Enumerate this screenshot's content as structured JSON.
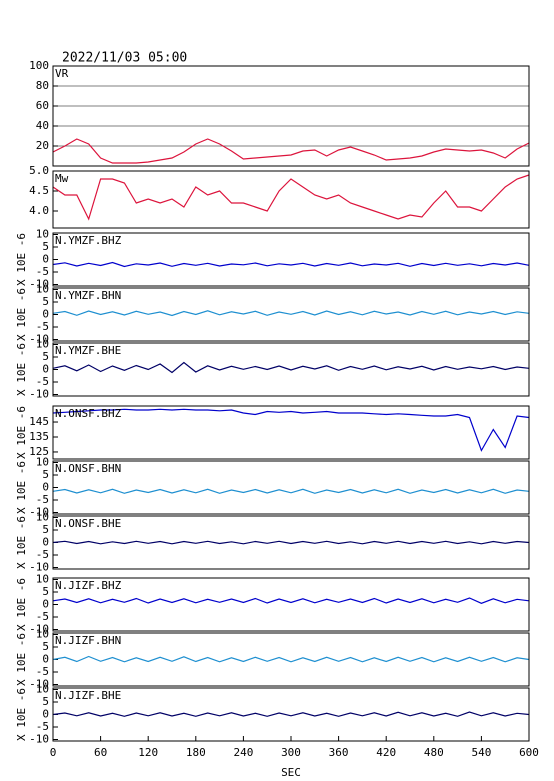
{
  "chart_data": [
    {
      "type": "line",
      "title": "2022/11/03 05:00",
      "label": "VR",
      "grid": true,
      "color": "#dc143c",
      "xlim": [
        0,
        600
      ],
      "ylim": [
        0,
        100
      ],
      "yticks": [
        20,
        40,
        60,
        80,
        100
      ],
      "x": [
        0,
        15,
        30,
        45,
        60,
        75,
        90,
        105,
        120,
        135,
        150,
        165,
        180,
        195,
        210,
        225,
        240,
        255,
        270,
        285,
        300,
        315,
        330,
        345,
        360,
        375,
        390,
        405,
        420,
        435,
        450,
        465,
        480,
        495,
        510,
        525,
        540,
        555,
        570,
        585,
        600
      ],
      "values": [
        14,
        20,
        27,
        22,
        8,
        3,
        3,
        3,
        4,
        6,
        8,
        14,
        22,
        27,
        22,
        15,
        7,
        8,
        9,
        10,
        11,
        15,
        16,
        10,
        16,
        19,
        15,
        11,
        6,
        7,
        8,
        10,
        14,
        17,
        16,
        15,
        16,
        13,
        8,
        17,
        23
      ]
    },
    {
      "type": "line",
      "label": "Mw",
      "color": "#dc143c",
      "xlim": [
        0,
        600
      ],
      "ylim": [
        3.575,
        5.0
      ],
      "yticks": [
        {
          "value": 4.0,
          "label": "4.0"
        },
        {
          "value": 4.5,
          "label": "4.5"
        },
        {
          "value": 5.0,
          "label": "5.0"
        }
      ],
      "x": [
        0,
        15,
        30,
        45,
        60,
        75,
        90,
        105,
        120,
        135,
        150,
        165,
        180,
        195,
        210,
        225,
        240,
        255,
        270,
        285,
        300,
        315,
        330,
        345,
        360,
        375,
        390,
        405,
        420,
        435,
        450,
        465,
        480,
        495,
        510,
        525,
        540,
        555,
        570,
        585,
        600
      ],
      "values": [
        4.6,
        4.4,
        4.4,
        3.8,
        4.8,
        4.8,
        4.7,
        4.2,
        4.3,
        4.2,
        4.3,
        4.1,
        4.6,
        4.4,
        4.5,
        4.2,
        4.2,
        4.1,
        4.0,
        4.5,
        4.8,
        4.6,
        4.4,
        4.3,
        4.4,
        4.2,
        4.1,
        4.0,
        3.9,
        3.8,
        3.9,
        3.85,
        4.2,
        4.5,
        4.1,
        4.1,
        4.0,
        4.3,
        4.6,
        4.8,
        4.9
      ]
    },
    {
      "type": "line",
      "label": "N.YMZF.BHZ",
      "ylabel": "X 10E -6",
      "color": "#0000cc",
      "xlim": [
        0,
        600
      ],
      "ylim": [
        -10.6,
        10.6
      ],
      "yticks": [
        -10,
        -5,
        0,
        5,
        10
      ],
      "x": [
        0,
        15,
        30,
        45,
        60,
        75,
        90,
        105,
        120,
        135,
        150,
        165,
        180,
        195,
        210,
        225,
        240,
        255,
        270,
        285,
        300,
        315,
        330,
        345,
        360,
        375,
        390,
        405,
        420,
        435,
        450,
        465,
        480,
        495,
        510,
        525,
        540,
        555,
        570,
        585,
        600
      ],
      "values": [
        -2,
        -1.3,
        -2.6,
        -1.5,
        -2.4,
        -1.2,
        -2.8,
        -1.7,
        -2.2,
        -1.4,
        -2.7,
        -1.6,
        -2.3,
        -1.5,
        -2.6,
        -1.8,
        -2.1,
        -1.4,
        -2.5,
        -1.7,
        -2.2,
        -1.5,
        -2.6,
        -1.6,
        -2.3,
        -1.4,
        -2.5,
        -1.8,
        -2.2,
        -1.5,
        -2.7,
        -1.6,
        -2.4,
        -1.5,
        -2.3,
        -1.7,
        -2.5,
        -1.6,
        -2.2,
        -1.4,
        -2.3
      ]
    },
    {
      "type": "line",
      "label": "N.YMZF.BHN",
      "ylabel": "X 10E -6",
      "color": "#1e8fd0",
      "xlim": [
        0,
        600
      ],
      "ylim": [
        -10.6,
        10.6
      ],
      "yticks": [
        -10,
        -5,
        0,
        5,
        10
      ],
      "x": [
        0,
        15,
        30,
        45,
        60,
        75,
        90,
        105,
        120,
        135,
        150,
        165,
        180,
        195,
        210,
        225,
        240,
        255,
        270,
        285,
        300,
        315,
        330,
        345,
        360,
        375,
        390,
        405,
        420,
        435,
        450,
        465,
        480,
        495,
        510,
        525,
        540,
        555,
        570,
        585,
        600
      ],
      "values": [
        0.5,
        1.2,
        -0.3,
        1.4,
        0,
        1.1,
        -0.2,
        1.3,
        0.1,
        1.0,
        -0.4,
        1.2,
        0,
        1.5,
        -0.1,
        1.1,
        0.2,
        1.3,
        -0.3,
        1.0,
        0.1,
        1.2,
        -0.2,
        1.4,
        0,
        1.1,
        -0.1,
        1.3,
        0.2,
        1.0,
        -0.2,
        1.2,
        0.1,
        1.3,
        -0.1,
        1.0,
        0.2,
        1.2,
        0,
        1.1,
        0.5
      ]
    },
    {
      "type": "line",
      "label": "N.YMZF.BHE",
      "ylabel": "X 10E -6",
      "color": "#000066",
      "xlim": [
        0,
        600
      ],
      "ylim": [
        -10.6,
        10.6
      ],
      "yticks": [
        -10,
        -5,
        0,
        5,
        10
      ],
      "x": [
        0,
        15,
        30,
        45,
        60,
        75,
        90,
        105,
        120,
        135,
        150,
        165,
        180,
        195,
        210,
        225,
        240,
        255,
        270,
        285,
        300,
        315,
        330,
        345,
        360,
        375,
        390,
        405,
        420,
        435,
        450,
        465,
        480,
        495,
        510,
        525,
        540,
        555,
        570,
        585,
        600
      ],
      "values": [
        0.5,
        1.5,
        -0.5,
        1.8,
        -0.8,
        1.4,
        -0.3,
        1.6,
        0,
        2.2,
        -1.2,
        2.8,
        -1.0,
        1.5,
        -0.2,
        1.3,
        0.1,
        1.2,
        0,
        1.4,
        -0.2,
        1.3,
        0.2,
        1.5,
        -0.3,
        1.2,
        0.1,
        1.4,
        -0.1,
        1.1,
        0.2,
        1.3,
        -0.2,
        1.2,
        0.1,
        1.0,
        0.3,
        1.2,
        0,
        1.0,
        0.5
      ]
    },
    {
      "type": "line",
      "label": "N.ONSF.BHZ",
      "ylabel": "X 10E -6",
      "color": "#0000cc",
      "xlim": [
        0,
        600
      ],
      "ylim": [
        120.3,
        155.7
      ],
      "yticks": [
        125,
        135,
        145
      ],
      "x": [
        0,
        15,
        30,
        45,
        60,
        75,
        90,
        105,
        120,
        135,
        150,
        165,
        180,
        195,
        210,
        225,
        240,
        255,
        270,
        285,
        300,
        315,
        330,
        345,
        360,
        375,
        390,
        405,
        420,
        435,
        450,
        465,
        480,
        495,
        510,
        525,
        540,
        555,
        570,
        585,
        600
      ],
      "values": [
        151,
        151.5,
        152,
        152.5,
        153,
        153,
        153.5,
        153,
        153,
        153.5,
        153,
        153.5,
        153,
        153,
        152.5,
        153,
        151,
        150,
        152,
        151.5,
        152,
        151,
        151.5,
        152,
        151,
        151,
        151,
        150.5,
        150,
        150.5,
        150,
        149.5,
        149,
        149,
        150,
        148,
        126,
        140,
        128,
        149,
        148
      ]
    },
    {
      "type": "line",
      "label": "N.ONSF.BHN",
      "ylabel": "X 10E -6",
      "color": "#1e8fd0",
      "xlim": [
        0,
        600
      ],
      "ylim": [
        -10.6,
        10.6
      ],
      "yticks": [
        -10,
        -5,
        0,
        5,
        10
      ],
      "x": [
        0,
        15,
        30,
        45,
        60,
        75,
        90,
        105,
        120,
        135,
        150,
        165,
        180,
        195,
        210,
        225,
        240,
        255,
        270,
        285,
        300,
        315,
        330,
        345,
        360,
        375,
        390,
        405,
        420,
        435,
        450,
        465,
        480,
        495,
        510,
        525,
        540,
        555,
        570,
        585,
        600
      ],
      "values": [
        -1.5,
        -0.8,
        -2.2,
        -0.9,
        -2.1,
        -0.7,
        -2.3,
        -1.0,
        -2.0,
        -0.8,
        -2.2,
        -0.9,
        -2.1,
        -0.7,
        -2.3,
        -1.0,
        -2.0,
        -0.8,
        -2.2,
        -0.9,
        -2.1,
        -0.7,
        -2.3,
        -1.0,
        -2.0,
        -0.8,
        -2.2,
        -0.9,
        -2.1,
        -0.7,
        -2.3,
        -1.0,
        -2.0,
        -0.8,
        -2.2,
        -0.9,
        -2.1,
        -0.7,
        -2.3,
        -1.0,
        -1.5
      ]
    },
    {
      "type": "line",
      "label": "N.ONSF.BHE",
      "ylabel": "X 10E -6",
      "color": "#000066",
      "xlim": [
        0,
        600
      ],
      "ylim": [
        -10.6,
        10.6
      ],
      "yticks": [
        -10,
        -5,
        0,
        5,
        10
      ],
      "x": [
        0,
        15,
        30,
        45,
        60,
        75,
        90,
        105,
        120,
        135,
        150,
        165,
        180,
        195,
        210,
        225,
        240,
        255,
        270,
        285,
        300,
        315,
        330,
        345,
        360,
        375,
        390,
        405,
        420,
        435,
        450,
        465,
        480,
        495,
        510,
        525,
        540,
        555,
        570,
        585,
        600
      ],
      "values": [
        0,
        0.5,
        -0.4,
        0.4,
        -0.5,
        0.3,
        -0.4,
        0.5,
        -0.3,
        0.4,
        -0.5,
        0.4,
        -0.3,
        0.5,
        -0.4,
        0.3,
        -0.5,
        0.4,
        -0.3,
        0.5,
        -0.4,
        0.4,
        -0.3,
        0.5,
        -0.4,
        0.3,
        -0.5,
        0.4,
        -0.3,
        0.5,
        -0.4,
        0.4,
        -0.3,
        0.5,
        -0.4,
        0.3,
        -0.5,
        0.4,
        -0.3,
        0.4,
        0
      ]
    },
    {
      "type": "line",
      "label": "N.JIZF.BHZ",
      "ylabel": "X 10E -6",
      "color": "#0000cc",
      "xlim": [
        0,
        600
      ],
      "ylim": [
        -10.6,
        10.6
      ],
      "yticks": [
        -10,
        -5,
        0,
        5,
        10
      ],
      "x": [
        0,
        15,
        30,
        45,
        60,
        75,
        90,
        105,
        120,
        135,
        150,
        165,
        180,
        195,
        210,
        225,
        240,
        255,
        270,
        285,
        300,
        315,
        330,
        345,
        360,
        375,
        390,
        405,
        420,
        435,
        450,
        465,
        480,
        495,
        510,
        525,
        540,
        555,
        570,
        585,
        600
      ],
      "values": [
        1.5,
        2.2,
        0.8,
        2.3,
        0.7,
        2.1,
        0.9,
        2.4,
        0.6,
        2.2,
        0.8,
        2.3,
        0.7,
        2.1,
        0.9,
        2.2,
        0.8,
        2.4,
        0.6,
        2.2,
        0.8,
        2.3,
        0.7,
        2.1,
        0.9,
        2.2,
        0.8,
        2.4,
        0.6,
        2.2,
        0.8,
        2.3,
        0.7,
        2.1,
        0.9,
        2.6,
        0.5,
        2.3,
        0.7,
        2.1,
        1.5
      ]
    },
    {
      "type": "line",
      "label": "N.JIZF.BHN",
      "ylabel": "X 10E -6",
      "color": "#1e8fd0",
      "xlim": [
        0,
        600
      ],
      "ylim": [
        -10.6,
        10.6
      ],
      "yticks": [
        -10,
        -5,
        0,
        5,
        10
      ],
      "x": [
        0,
        15,
        30,
        45,
        60,
        75,
        90,
        105,
        120,
        135,
        150,
        165,
        180,
        195,
        210,
        225,
        240,
        255,
        270,
        285,
        300,
        315,
        330,
        345,
        360,
        375,
        390,
        405,
        420,
        435,
        450,
        465,
        480,
        495,
        510,
        525,
        540,
        555,
        570,
        585,
        600
      ],
      "values": [
        0,
        0.9,
        -0.8,
        1.2,
        -0.7,
        0.8,
        -0.9,
        0.7,
        -0.8,
        0.9,
        -0.7,
        1.1,
        -0.8,
        0.8,
        -0.9,
        0.7,
        -0.8,
        0.9,
        -0.7,
        0.8,
        -0.9,
        0.7,
        -0.8,
        0.9,
        -0.7,
        0.8,
        -0.9,
        0.7,
        -0.8,
        0.9,
        -0.7,
        0.8,
        -0.9,
        0.7,
        -0.8,
        0.9,
        -0.7,
        0.8,
        -0.9,
        0.7,
        0
      ]
    },
    {
      "type": "line",
      "label": "N.JIZF.BHE",
      "ylabel": "X 10E -6",
      "color": "#000066",
      "xlabel": "SEC",
      "xlim": [
        0,
        600
      ],
      "ylim": [
        -10.6,
        10.6
      ],
      "yticks": [
        -10,
        -5,
        0,
        5,
        10
      ],
      "xticks": [
        0,
        60,
        120,
        180,
        240,
        300,
        360,
        420,
        480,
        540,
        600
      ],
      "x": [
        0,
        15,
        30,
        45,
        60,
        75,
        90,
        105,
        120,
        135,
        150,
        165,
        180,
        195,
        210,
        225,
        240,
        255,
        270,
        285,
        300,
        315,
        330,
        345,
        360,
        375,
        390,
        405,
        420,
        435,
        450,
        465,
        480,
        495,
        510,
        525,
        540,
        555,
        570,
        585,
        600
      ],
      "values": [
        0,
        0.6,
        -0.5,
        0.7,
        -0.6,
        0.5,
        -0.7,
        0.6,
        -0.5,
        0.7,
        -0.6,
        0.5,
        -0.7,
        0.6,
        -0.5,
        0.7,
        -0.6,
        0.5,
        -0.7,
        0.6,
        -0.5,
        0.7,
        -0.6,
        0.5,
        -0.7,
        0.6,
        -0.5,
        0.7,
        -0.6,
        0.9,
        -0.5,
        0.7,
        -0.6,
        0.5,
        -0.7,
        1.0,
        -0.5,
        0.7,
        -0.6,
        0.5,
        0
      ]
    }
  ]
}
